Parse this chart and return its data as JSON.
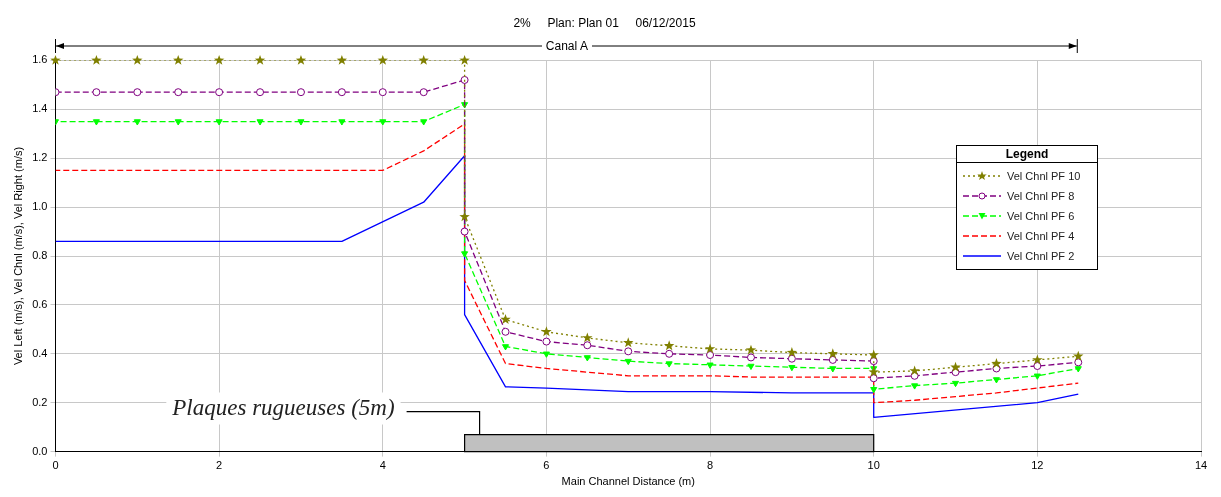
{
  "chart_data": {
    "type": "line",
    "title": "2%     Plan: Plan 01     06/12/2015",
    "xlabel": "Main Channel Distance (m)",
    "ylabel": "Vel Left (m/s), Vel Chnl (m/s), Vel Right (m/s)",
    "legend_title": "Legend",
    "legend": "right",
    "grid": true,
    "xlim": [
      0,
      14
    ],
    "xticks": [
      0,
      2,
      4,
      6,
      8,
      10,
      12,
      14
    ],
    "ylim": [
      0,
      1.6
    ],
    "yticks": [
      {
        "value": 0,
        "label": "0.0"
      },
      {
        "value": 0.2,
        "label": "0.2"
      },
      {
        "value": 0.4,
        "label": "0.4"
      },
      {
        "value": 0.6,
        "label": "0.6"
      },
      {
        "value": 0.8,
        "label": "0.8"
      },
      {
        "value": 1,
        "label": "1.0"
      },
      {
        "value": 1.2,
        "label": "1.2"
      },
      {
        "value": 1.4,
        "label": "1.4"
      },
      {
        "value": 1.6,
        "label": "1.6"
      }
    ],
    "annotations": [
      "Canal A"
    ],
    "bands": [
      {
        "axis": "x",
        "from": 5,
        "to": 10,
        "label": "Plaques rugueuses (5m)",
        "color": "#c0c0c0"
      }
    ],
    "series": [
      {
        "name": "Vel Chnl PF 10",
        "color": "#808000",
        "marker": "star",
        "line_style": "dotted",
        "x": [
          0,
          0.5,
          1,
          1.5,
          2,
          2.5,
          3,
          3.5,
          4,
          4.5,
          5,
          5,
          5.5,
          6,
          6.5,
          7,
          7.5,
          8,
          8.5,
          9,
          9.5,
          10,
          10,
          10.5,
          11,
          11.5,
          12,
          12.5
        ],
        "values": [
          1.6,
          1.6,
          1.6,
          1.6,
          1.6,
          1.6,
          1.6,
          1.6,
          1.6,
          1.6,
          1.6,
          0.96,
          0.54,
          0.49,
          0.465,
          0.445,
          0.433,
          0.42,
          0.415,
          0.405,
          0.4,
          0.395,
          0.325,
          0.33,
          0.345,
          0.36,
          0.375,
          0.39
        ]
      },
      {
        "name": "Vel Chnl PF 8",
        "color": "#800080",
        "marker": "circle",
        "line_style": "dashed",
        "x": [
          0,
          0.5,
          1,
          1.5,
          2,
          2.5,
          3,
          3.5,
          4,
          4.5,
          5,
          5,
          5.5,
          6,
          6.5,
          7,
          7.5,
          8,
          8.5,
          9,
          9.5,
          10,
          10,
          10.5,
          11,
          11.5,
          12,
          12.5
        ],
        "values": [
          1.47,
          1.47,
          1.47,
          1.47,
          1.47,
          1.47,
          1.47,
          1.47,
          1.47,
          1.47,
          1.52,
          0.9,
          0.49,
          0.45,
          0.435,
          0.41,
          0.4,
          0.395,
          0.385,
          0.38,
          0.375,
          0.37,
          0.3,
          0.31,
          0.325,
          0.34,
          0.35,
          0.365
        ]
      },
      {
        "name": "Vel Chnl PF 6",
        "color": "#00ff00",
        "marker": "triangle",
        "line_style": "dashed",
        "x": [
          0,
          0.5,
          1,
          1.5,
          2,
          2.5,
          3,
          3.5,
          4,
          4.5,
          5,
          5,
          5.5,
          6,
          6.5,
          7,
          7.5,
          8,
          8.5,
          9,
          9.5,
          10,
          10,
          10.5,
          11,
          11.5,
          12,
          12.5
        ],
        "values": [
          1.35,
          1.35,
          1.35,
          1.35,
          1.35,
          1.35,
          1.35,
          1.35,
          1.35,
          1.35,
          1.42,
          0.81,
          0.43,
          0.4,
          0.385,
          0.37,
          0.36,
          0.355,
          0.35,
          0.345,
          0.34,
          0.34,
          0.255,
          0.27,
          0.28,
          0.295,
          0.31,
          0.34
        ]
      },
      {
        "name": "Vel Chnl PF 4",
        "color": "#ff0000",
        "marker": "none",
        "line_style": "dashed",
        "x": [
          0,
          4,
          4.5,
          5,
          5,
          5.5,
          6,
          6.5,
          7,
          7.5,
          8,
          8.5,
          9,
          9.5,
          10,
          10,
          10.5,
          11,
          11.5,
          12,
          12.5
        ],
        "values": [
          1.15,
          1.15,
          1.23,
          1.34,
          0.7,
          0.36,
          0.34,
          0.325,
          0.31,
          0.31,
          0.31,
          0.305,
          0.305,
          0.305,
          0.305,
          0.2,
          0.21,
          0.225,
          0.24,
          0.26,
          0.28
        ]
      },
      {
        "name": "Vel Chnl PF 2",
        "color": "#0000ff",
        "marker": "none",
        "line_style": "solid",
        "x": [
          0,
          3.5,
          4.5,
          5,
          5,
          5.5,
          6,
          7,
          8,
          9,
          10,
          10,
          12,
          12.5
        ],
        "values": [
          0.86,
          0.86,
          1.02,
          1.21,
          0.56,
          0.265,
          0.26,
          0.245,
          0.245,
          0.24,
          0.24,
          0.14,
          0.2,
          0.235
        ]
      }
    ]
  }
}
